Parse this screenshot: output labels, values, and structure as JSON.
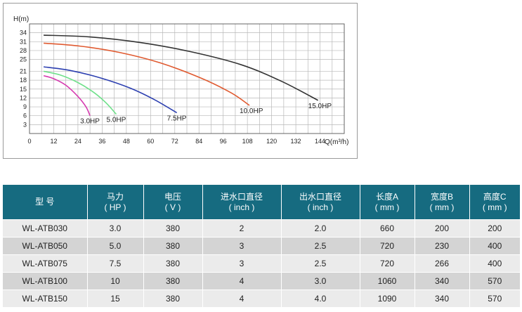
{
  "chart_data": {
    "type": "line",
    "xlabel": "Q(m³/h)",
    "ylabel": "H(m)",
    "x_ticks": [
      0,
      12,
      24,
      36,
      48,
      60,
      72,
      84,
      96,
      108,
      120,
      132,
      144
    ],
    "y_ticks": [
      3,
      6,
      9,
      12,
      15,
      18,
      21,
      25,
      28,
      31,
      34
    ],
    "xlim": [
      0,
      156
    ],
    "ylim": [
      0,
      37
    ],
    "grid": true,
    "series": [
      {
        "name": "3.0HP",
        "color": "#d63cb0",
        "x": [
          7,
          12,
          18,
          24,
          28,
          30
        ],
        "y": [
          19.5,
          18.5,
          16.3,
          12.5,
          9,
          6
        ]
      },
      {
        "name": "5.0HP",
        "color": "#6fe08a",
        "x": [
          7,
          15,
          24,
          32,
          38,
          43
        ],
        "y": [
          21,
          19.8,
          17.2,
          13.8,
          10.3,
          6.5
        ]
      },
      {
        "name": "7.5HP",
        "color": "#2c3fb0",
        "x": [
          7,
          20,
          35,
          50,
          62,
          73
        ],
        "y": [
          22.5,
          21.3,
          18.8,
          15.3,
          11.4,
          7
        ]
      },
      {
        "name": "10.0HP",
        "color": "#e05a30",
        "x": [
          7,
          25,
          45,
          65,
          85,
          100,
          109
        ],
        "y": [
          30.5,
          29.5,
          27.3,
          23.8,
          18.7,
          13.7,
          9.5
        ]
      },
      {
        "name": "15.0HP",
        "color": "#333333",
        "x": [
          7,
          30,
          55,
          80,
          105,
          125,
          143
        ],
        "y": [
          33.2,
          32.6,
          30.7,
          27.6,
          23.2,
          17.6,
          11.2
        ]
      }
    ]
  },
  "table": {
    "headers": [
      {
        "line1": "型  号",
        "line2": ""
      },
      {
        "line1": "马力",
        "line2": "( HP )"
      },
      {
        "line1": "电压",
        "line2": "( V )"
      },
      {
        "line1": "进水口直径",
        "line2": "( inch )"
      },
      {
        "line1": "出水口直径",
        "line2": "( inch )"
      },
      {
        "line1": "长度A",
        "line2": "( mm )"
      },
      {
        "line1": "宽度B",
        "line2": "( mm )"
      },
      {
        "line1": "高度C",
        "line2": "( mm )"
      }
    ],
    "rows": [
      [
        "WL-ATB030",
        "3.0",
        "380",
        "2",
        "2.0",
        "660",
        "200",
        "200"
      ],
      [
        "WL-ATB050",
        "5.0",
        "380",
        "3",
        "2.5",
        "720",
        "230",
        "400"
      ],
      [
        "WL-ATB075",
        "7.5",
        "380",
        "3",
        "2.5",
        "720",
        "266",
        "400"
      ],
      [
        "WL-ATB100",
        "10",
        "380",
        "4",
        "3.0",
        "1060",
        "340",
        "570"
      ],
      [
        "WL-ATB150",
        "15",
        "380",
        "4",
        "4.0",
        "1090",
        "340",
        "570"
      ]
    ]
  }
}
